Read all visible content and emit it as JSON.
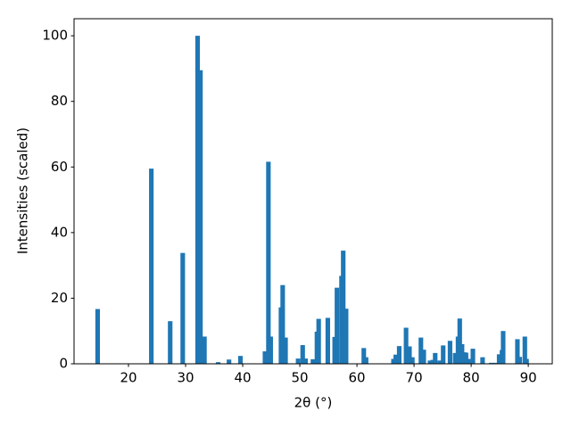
{
  "chart_data": {
    "type": "bar",
    "xlabel": "2θ (°)",
    "ylabel": "Intensities (scaled)",
    "color": "#1f77b4",
    "x": [
      14.6,
      24.0,
      27.3,
      29.5,
      32.1,
      32.6,
      33.3,
      35.7,
      37.6,
      39.6,
      43.9,
      44.5,
      44.9,
      46.7,
      47.0,
      47.5,
      49.7,
      50.5,
      51.0,
      52.3,
      53.0,
      53.3,
      54.9,
      56.1,
      56.5,
      57.3,
      57.6,
      58.1,
      61.2,
      61.6,
      66.4,
      66.8,
      67.4,
      68.6,
      69.2,
      69.7,
      71.2,
      71.7,
      72.8,
      73.3,
      73.7,
      74.5,
      75.1,
      76.3,
      77.2,
      77.7,
      78.0,
      78.4,
      78.8,
      79.1,
      79.5,
      80.3,
      82.0,
      83.5,
      84.2,
      84.9,
      85.4,
      85.6,
      88.1,
      88.5,
      89.4,
      89.7
    ],
    "values": [
      16.7,
      59.5,
      13,
      33.8,
      100,
      89.5,
      8.3,
      0.5,
      1.3,
      2.4,
      3.8,
      61.6,
      8.3,
      17.2,
      24,
      8,
      1.6,
      5.7,
      1.6,
      1.4,
      9.8,
      13.7,
      14,
      8.2,
      23.2,
      26.8,
      34.5,
      16.8,
      4.8,
      2,
      1.5,
      2.8,
      5.4,
      11,
      5.3,
      2,
      8,
      4.3,
      1,
      1.2,
      3.3,
      1,
      5.6,
      7,
      3.3,
      8.3,
      13.8,
      6,
      3.5,
      3.4,
      1.5,
      4.6,
      2,
      0.3,
      0.3,
      2.9,
      4.2,
      10,
      7.5,
      2.1,
      8.3,
      1.5
    ],
    "xlim": [
      10.47,
      94.2
    ],
    "ylim": [
      0,
      105.2
    ],
    "xticks": [
      20,
      30,
      40,
      50,
      60,
      70,
      80,
      90
    ],
    "yticks": [
      0,
      20,
      40,
      60,
      80,
      100
    ]
  }
}
